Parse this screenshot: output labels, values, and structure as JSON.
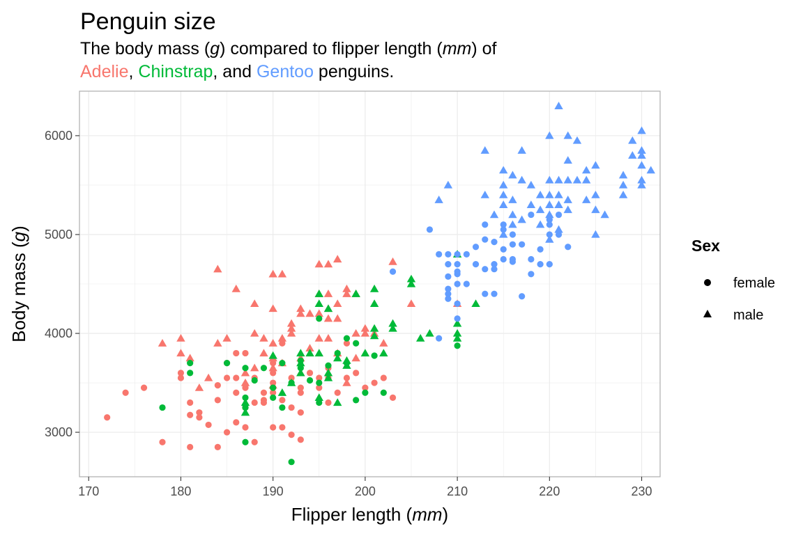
{
  "chart_data": {
    "type": "scatter",
    "title": "Penguin size",
    "subtitle": {
      "line1": {
        "pre": "The body mass (",
        "g": "g",
        "mid": ") compared to flipper length (",
        "mm": "mm",
        "post": ") of"
      },
      "line2": {
        "adelie": "Adelie",
        "sep1": ", ",
        "chinstrap": "Chinstrap",
        "sep2": ", and ",
        "gentoo": "Gentoo",
        "post": " penguins."
      }
    },
    "xlabel": {
      "pre": "Flipper length (",
      "unit": "mm",
      "post": ")"
    },
    "ylabel": {
      "pre": "Body mass (",
      "unit": "g",
      "post": ")"
    },
    "xlim": [
      169,
      232
    ],
    "ylim": [
      2550,
      6450
    ],
    "xticks": [
      170,
      180,
      190,
      200,
      210,
      220,
      230
    ],
    "yticks": [
      3000,
      4000,
      5000,
      6000
    ],
    "grid": true,
    "legend": {
      "title": "Sex",
      "placement": "right",
      "entries": [
        {
          "label": "female",
          "shape": "circle"
        },
        {
          "label": "male",
          "shape": "triangle"
        }
      ]
    },
    "colors": {
      "Adelie": "#f8766d",
      "Chinstrap": "#00ba38",
      "Gentoo": "#619cff"
    },
    "series": [
      {
        "species": "Adelie",
        "sex": "female",
        "points": [
          [
            172,
            3150
          ],
          [
            174,
            3400
          ],
          [
            176,
            3450
          ],
          [
            178,
            2900
          ],
          [
            180,
            3550
          ],
          [
            180,
            3600
          ],
          [
            181,
            2850
          ],
          [
            181,
            3175
          ],
          [
            181,
            3300
          ],
          [
            182,
            3200
          ],
          [
            182,
            3150
          ],
          [
            183,
            3075
          ],
          [
            184,
            2850
          ],
          [
            184,
            3325
          ],
          [
            184,
            3475
          ],
          [
            185,
            3000
          ],
          [
            185,
            3550
          ],
          [
            185,
            3700
          ],
          [
            186,
            3100
          ],
          [
            186,
            3400
          ],
          [
            186,
            3800
          ],
          [
            186,
            3550
          ],
          [
            187,
            3450
          ],
          [
            187,
            3050
          ],
          [
            187,
            3250
          ],
          [
            187,
            3800
          ],
          [
            188,
            2900
          ],
          [
            188,
            3300
          ],
          [
            188,
            3550
          ],
          [
            189,
            3325
          ],
          [
            189,
            3400
          ],
          [
            189,
            3300
          ],
          [
            190,
            3050
          ],
          [
            190,
            3400
          ],
          [
            190,
            3450
          ],
          [
            190,
            3600
          ],
          [
            190,
            3700
          ],
          [
            190,
            3500
          ],
          [
            191,
            3050
          ],
          [
            191,
            3325
          ],
          [
            191,
            3900
          ],
          [
            192,
            2975
          ],
          [
            192,
            3250
          ],
          [
            192,
            3550
          ],
          [
            193,
            2925
          ],
          [
            193,
            3400
          ],
          [
            193,
            3450
          ],
          [
            193,
            3200
          ],
          [
            194,
            3600
          ],
          [
            195,
            3550
          ],
          [
            195,
            3450
          ],
          [
            196,
            3650
          ],
          [
            196,
            3550
          ],
          [
            196,
            3300
          ],
          [
            197,
            3400
          ],
          [
            198,
            3550
          ],
          [
            198,
            3900
          ],
          [
            199,
            3600
          ],
          [
            200,
            3450
          ],
          [
            201,
            3500
          ],
          [
            202,
            3550
          ],
          [
            203,
            3350
          ]
        ]
      },
      {
        "species": "Adelie",
        "sex": "male",
        "points": [
          [
            178,
            3900
          ],
          [
            180,
            3950
          ],
          [
            180,
            3800
          ],
          [
            181,
            3750
          ],
          [
            182,
            3450
          ],
          [
            183,
            3550
          ],
          [
            184,
            3900
          ],
          [
            184,
            4650
          ],
          [
            185,
            3950
          ],
          [
            186,
            4450
          ],
          [
            187,
            3600
          ],
          [
            187,
            3500
          ],
          [
            188,
            4300
          ],
          [
            188,
            4000
          ],
          [
            188,
            3650
          ],
          [
            189,
            3800
          ],
          [
            189,
            3950
          ],
          [
            190,
            3900
          ],
          [
            190,
            4250
          ],
          [
            190,
            4600
          ],
          [
            190,
            3750
          ],
          [
            190,
            3650
          ],
          [
            190,
            3475
          ],
          [
            191,
            3700
          ],
          [
            191,
            4600
          ],
          [
            191,
            3950
          ],
          [
            192,
            4000
          ],
          [
            192,
            4100
          ],
          [
            192,
            4050
          ],
          [
            193,
            4250
          ],
          [
            193,
            4200
          ],
          [
            193,
            3750
          ],
          [
            193,
            3600
          ],
          [
            194,
            4200
          ],
          [
            194,
            3850
          ],
          [
            195,
            4700
          ],
          [
            195,
            3950
          ],
          [
            195,
            4200
          ],
          [
            195,
            4400
          ],
          [
            196,
            4700
          ],
          [
            196,
            4150
          ],
          [
            196,
            3950
          ],
          [
            196,
            4400
          ],
          [
            196,
            4250
          ],
          [
            197,
            4750
          ],
          [
            197,
            4300
          ],
          [
            197,
            4150
          ],
          [
            197,
            3800
          ],
          [
            198,
            4450
          ],
          [
            198,
            4400
          ],
          [
            198,
            3500
          ],
          [
            199,
            4400
          ],
          [
            199,
            4000
          ],
          [
            199,
            3750
          ],
          [
            200,
            4050
          ],
          [
            200,
            4000
          ],
          [
            201,
            4000
          ],
          [
            202,
            3900
          ],
          [
            203,
            4725
          ],
          [
            205,
            4300
          ],
          [
            210,
            4300
          ]
        ]
      },
      {
        "species": "Chinstrap",
        "sex": "female",
        "points": [
          [
            178,
            3250
          ],
          [
            181,
            3700
          ],
          [
            181,
            3600
          ],
          [
            185,
            3700
          ],
          [
            187,
            3650
          ],
          [
            187,
            3350
          ],
          [
            187,
            3250
          ],
          [
            187,
            2900
          ],
          [
            188,
            3525
          ],
          [
            189,
            3650
          ],
          [
            190,
            3450
          ],
          [
            190,
            3350
          ],
          [
            191,
            3250
          ],
          [
            191,
            3700
          ],
          [
            192,
            3500
          ],
          [
            192,
            2700
          ],
          [
            193,
            3650
          ],
          [
            193,
            3725
          ],
          [
            194,
            3525
          ],
          [
            195,
            4150
          ],
          [
            195,
            3500
          ],
          [
            195,
            3300
          ],
          [
            196,
            3675
          ],
          [
            197,
            3800
          ],
          [
            198,
            3950
          ],
          [
            198,
            3700
          ],
          [
            199,
            3900
          ],
          [
            199,
            3325
          ],
          [
            200,
            3400
          ],
          [
            201,
            3775
          ],
          [
            202,
            3400
          ],
          [
            210,
            3875
          ]
        ]
      },
      {
        "species": "Chinstrap",
        "sex": "male",
        "points": [
          [
            187,
            3300
          ],
          [
            187,
            3200
          ],
          [
            190,
            3775
          ],
          [
            191,
            3400
          ],
          [
            192,
            3500
          ],
          [
            193,
            3800
          ],
          [
            193,
            3700
          ],
          [
            193,
            3600
          ],
          [
            194,
            3800
          ],
          [
            195,
            3800
          ],
          [
            195,
            4400
          ],
          [
            195,
            4300
          ],
          [
            195,
            3350
          ],
          [
            196,
            4250
          ],
          [
            196,
            3550
          ],
          [
            196,
            3600
          ],
          [
            197,
            3750
          ],
          [
            198,
            3725
          ],
          [
            198,
            3675
          ],
          [
            197,
            3300
          ],
          [
            199,
            4400
          ],
          [
            200,
            3800
          ],
          [
            201,
            4450
          ],
          [
            201,
            4300
          ],
          [
            201,
            4050
          ],
          [
            201,
            3975
          ],
          [
            202,
            3800
          ],
          [
            203,
            4100
          ],
          [
            203,
            4050
          ],
          [
            205,
            4550
          ],
          [
            205,
            4500
          ],
          [
            206,
            3950
          ],
          [
            207,
            4000
          ],
          [
            210,
            4800
          ],
          [
            210,
            4100
          ],
          [
            210,
            4000
          ],
          [
            210,
            3950
          ],
          [
            212,
            4300
          ]
        ]
      },
      {
        "species": "Gentoo",
        "sex": "female",
        "points": [
          [
            203,
            4625
          ],
          [
            207,
            5050
          ],
          [
            208,
            4800
          ],
          [
            208,
            3950
          ],
          [
            209,
            4800
          ],
          [
            209,
            4450
          ],
          [
            209,
            4400
          ],
          [
            209,
            4350
          ],
          [
            209,
            4700
          ],
          [
            209,
            4575
          ],
          [
            210,
            4600
          ],
          [
            210,
            4700
          ],
          [
            210,
            4800
          ],
          [
            210,
            4500
          ],
          [
            210,
            4300
          ],
          [
            210,
            4625
          ],
          [
            210,
            4150
          ],
          [
            211,
            4800
          ],
          [
            211,
            4500
          ],
          [
            212,
            4700
          ],
          [
            212,
            4875
          ],
          [
            213,
            4400
          ],
          [
            213,
            4650
          ],
          [
            213,
            4950
          ],
          [
            213,
            5100
          ],
          [
            214,
            4700
          ],
          [
            214,
            4650
          ],
          [
            214,
            4400
          ],
          [
            214,
            4925
          ],
          [
            215,
            4750
          ],
          [
            215,
            4850
          ],
          [
            215,
            5050
          ],
          [
            215,
            5100
          ],
          [
            216,
            4750
          ],
          [
            216,
            4725
          ],
          [
            216,
            4900
          ],
          [
            216,
            5000
          ],
          [
            217,
            4375
          ],
          [
            217,
            4900
          ],
          [
            218,
            4600
          ],
          [
            218,
            4750
          ],
          [
            218,
            5200
          ],
          [
            219,
            4700
          ],
          [
            219,
            4850
          ],
          [
            220,
            4700
          ],
          [
            220,
            5000
          ],
          [
            220,
            5100
          ],
          [
            220,
            5150
          ],
          [
            221,
            5000
          ],
          [
            221,
            5200
          ],
          [
            222,
            4875
          ]
        ]
      },
      {
        "species": "Gentoo",
        "sex": "male",
        "points": [
          [
            208,
            5350
          ],
          [
            209,
            5500
          ],
          [
            213,
            5850
          ],
          [
            213,
            5400
          ],
          [
            214,
            5200
          ],
          [
            215,
            5650
          ],
          [
            215,
            5500
          ],
          [
            215,
            5400
          ],
          [
            215,
            5300
          ],
          [
            215,
            5000
          ],
          [
            216,
            5600
          ],
          [
            216,
            5100
          ],
          [
            216,
            5200
          ],
          [
            216,
            5350
          ],
          [
            217,
            5850
          ],
          [
            217,
            5550
          ],
          [
            217,
            5150
          ],
          [
            218,
            5300
          ],
          [
            218,
            5500
          ],
          [
            219,
            5250
          ],
          [
            219,
            5400
          ],
          [
            219,
            5100
          ],
          [
            220,
            6000
          ],
          [
            220,
            5550
          ],
          [
            220,
            5300
          ],
          [
            220,
            5400
          ],
          [
            220,
            5200
          ],
          [
            220,
            4950
          ],
          [
            221,
            6300
          ],
          [
            221,
            5550
          ],
          [
            221,
            5400
          ],
          [
            221,
            5300
          ],
          [
            221,
            5050
          ],
          [
            222,
            6000
          ],
          [
            222,
            5750
          ],
          [
            222,
            5350
          ],
          [
            222,
            5250
          ],
          [
            222,
            5550
          ],
          [
            223,
            5950
          ],
          [
            223,
            5550
          ],
          [
            224,
            5650
          ],
          [
            224,
            5550
          ],
          [
            224,
            5350
          ],
          [
            225,
            5700
          ],
          [
            225,
            5400
          ],
          [
            225,
            5000
          ],
          [
            225,
            5250
          ],
          [
            226,
            5200
          ],
          [
            228,
            5600
          ],
          [
            228,
            5400
          ],
          [
            228,
            5500
          ],
          [
            229,
            5950
          ],
          [
            229,
            5800
          ],
          [
            230,
            6050
          ],
          [
            230,
            5850
          ],
          [
            230,
            5800
          ],
          [
            230,
            5700
          ],
          [
            230,
            5550
          ],
          [
            230,
            5500
          ],
          [
            231,
            5650
          ]
        ]
      }
    ]
  }
}
